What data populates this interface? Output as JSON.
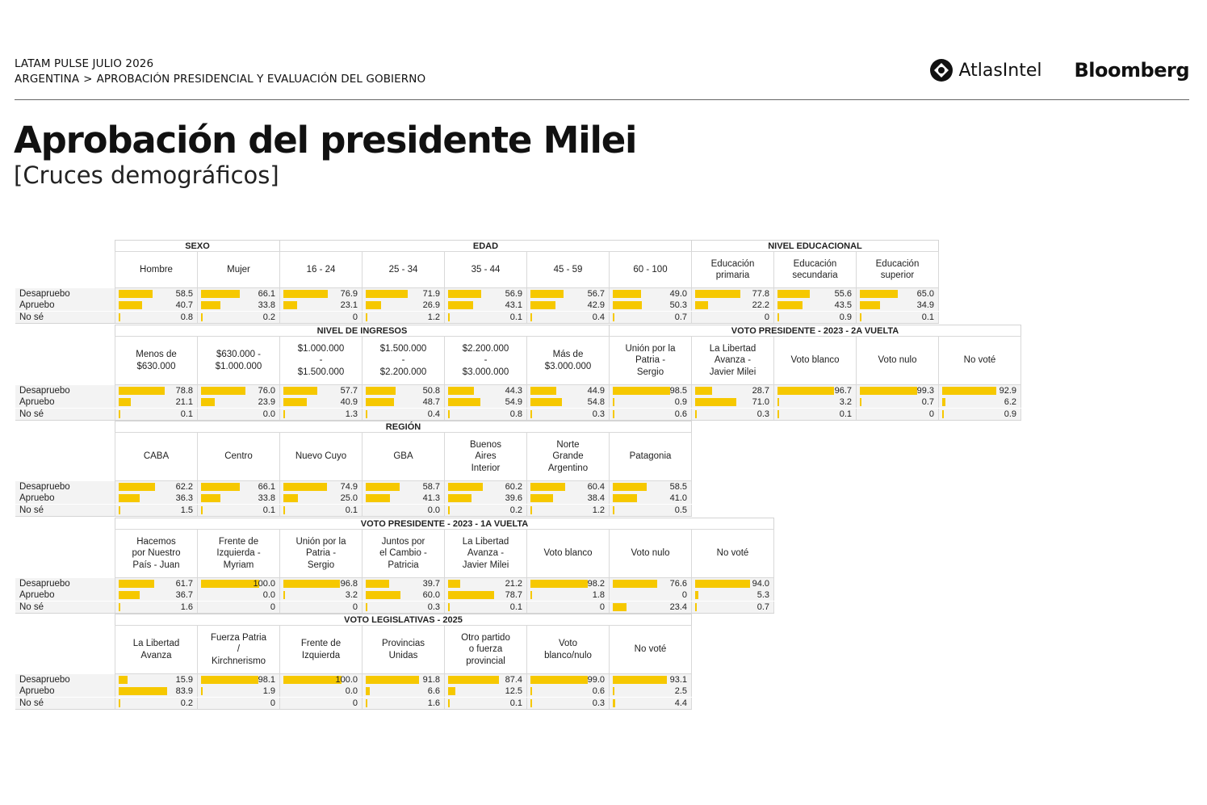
{
  "header": {
    "line1": "LATAM PULSE JULIO 2026",
    "crumb1": "ARGENTINA",
    "crumb_sep": ">",
    "crumb2": "APROBACIÓN PRESIDENCIAL Y EVALUACIÓN DEL GOBIERNO",
    "logo_atlas": "AtlasIntel",
    "logo_bloomberg": "Bloomberg"
  },
  "title": "Aprobación del presidente Milei",
  "subtitle": "[Cruces demográficos]",
  "colors": {
    "bar": "#f6c800",
    "cell_bg": "#f3f3f3",
    "border": "#d9d9d9"
  },
  "chart_data": [
    {
      "type": "table",
      "row_labels": [
        "Desapruebo",
        "Apruebo",
        "No sé"
      ],
      "groups": [
        {
          "name": "SEXO",
          "columns": [
            {
              "label": [
                "Hombre"
              ],
              "values": [
                58.5,
                40.7,
                0.8
              ],
              "text": [
                "58.5",
                "40.7",
                "0.8"
              ]
            },
            {
              "label": [
                "Mujer"
              ],
              "values": [
                66.1,
                33.8,
                0.2
              ],
              "text": [
                "66.1",
                "33.8",
                "0.2"
              ]
            }
          ]
        },
        {
          "name": "EDAD",
          "columns": [
            {
              "label": [
                "16 - 24"
              ],
              "values": [
                76.9,
                23.1,
                0
              ],
              "text": [
                "76.9",
                "23.1",
                "0"
              ]
            },
            {
              "label": [
                "25 - 34"
              ],
              "values": [
                71.9,
                26.9,
                1.2
              ],
              "text": [
                "71.9",
                "26.9",
                "1.2"
              ]
            },
            {
              "label": [
                "35 - 44"
              ],
              "values": [
                56.9,
                43.1,
                0.1
              ],
              "text": [
                "56.9",
                "43.1",
                "0.1"
              ]
            },
            {
              "label": [
                "45 - 59"
              ],
              "values": [
                56.7,
                42.9,
                0.4
              ],
              "text": [
                "56.7",
                "42.9",
                "0.4"
              ]
            },
            {
              "label": [
                "60 - 100"
              ],
              "values": [
                49.0,
                50.3,
                0.7
              ],
              "text": [
                "49.0",
                "50.3",
                "0.7"
              ]
            }
          ]
        },
        {
          "name": "NIVEL EDUCACIONAL",
          "columns": [
            {
              "label": [
                "Educación",
                "primaria"
              ],
              "values": [
                77.8,
                22.2,
                0
              ],
              "text": [
                "77.8",
                "22.2",
                "0"
              ]
            },
            {
              "label": [
                "Educación",
                "secundaria"
              ],
              "values": [
                55.6,
                43.5,
                0.9
              ],
              "text": [
                "55.6",
                "43.5",
                "0.9"
              ]
            },
            {
              "label": [
                "Educación",
                "superior"
              ],
              "values": [
                65.0,
                34.9,
                0.1
              ],
              "text": [
                "65.0",
                "34.9",
                "0.1"
              ]
            }
          ]
        }
      ]
    },
    {
      "type": "table",
      "row_labels": [
        "Desapruebo",
        "Apruebo",
        "No sé"
      ],
      "groups": [
        {
          "name": "NIVEL DE INGRESOS",
          "columns": [
            {
              "label": [
                "Menos de",
                "$630.000"
              ],
              "values": [
                78.8,
                21.1,
                0.1
              ],
              "text": [
                "78.8",
                "21.1",
                "0.1"
              ]
            },
            {
              "label": [
                "$630.000 -",
                "$1.000.000"
              ],
              "values": [
                76.0,
                23.9,
                0.0
              ],
              "text": [
                "76.0",
                "23.9",
                "0.0"
              ]
            },
            {
              "label": [
                "$1.000.000",
                "-",
                "$1.500.000"
              ],
              "values": [
                57.7,
                40.9,
                1.3
              ],
              "text": [
                "57.7",
                "40.9",
                "1.3"
              ]
            },
            {
              "label": [
                "$1.500.000",
                "-",
                "$2.200.000"
              ],
              "values": [
                50.8,
                48.7,
                0.4
              ],
              "text": [
                "50.8",
                "48.7",
                "0.4"
              ]
            },
            {
              "label": [
                "$2.200.000",
                "-",
                "$3.000.000"
              ],
              "values": [
                44.3,
                54.9,
                0.8
              ],
              "text": [
                "44.3",
                "54.9",
                "0.8"
              ]
            },
            {
              "label": [
                "Más de",
                "$3.000.000"
              ],
              "values": [
                44.9,
                54.8,
                0.3
              ],
              "text": [
                "44.9",
                "54.8",
                "0.3"
              ]
            }
          ]
        },
        {
          "name": "VOTO PRESIDENTE - 2023 - 2A VUELTA",
          "columns": [
            {
              "label": [
                "Unión por la",
                "Patria -",
                "Sergio"
              ],
              "values": [
                98.5,
                0.9,
                0.6
              ],
              "text": [
                "98.5",
                "0.9",
                "0.6"
              ]
            },
            {
              "label": [
                "La Libertad",
                "Avanza -",
                "Javier Milei"
              ],
              "values": [
                28.7,
                71.0,
                0.3
              ],
              "text": [
                "28.7",
                "71.0",
                "0.3"
              ]
            },
            {
              "label": [
                "Voto blanco"
              ],
              "values": [
                96.7,
                3.2,
                0.1
              ],
              "text": [
                "96.7",
                "3.2",
                "0.1"
              ]
            },
            {
              "label": [
                "Voto nulo"
              ],
              "values": [
                99.3,
                0.7,
                0
              ],
              "text": [
                "99.3",
                "0.7",
                "0"
              ]
            },
            {
              "label": [
                "No voté"
              ],
              "values": [
                92.9,
                6.2,
                0.9
              ],
              "text": [
                "92.9",
                "6.2",
                "0.9"
              ]
            }
          ]
        }
      ]
    },
    {
      "type": "table",
      "row_labels": [
        "Desapruebo",
        "Apruebo",
        "No sé"
      ],
      "groups": [
        {
          "name": "REGIÓN",
          "columns": [
            {
              "label": [
                "CABA"
              ],
              "values": [
                62.2,
                36.3,
                1.5
              ],
              "text": [
                "62.2",
                "36.3",
                "1.5"
              ]
            },
            {
              "label": [
                "Centro"
              ],
              "values": [
                66.1,
                33.8,
                0.1
              ],
              "text": [
                "66.1",
                "33.8",
                "0.1"
              ]
            },
            {
              "label": [
                "Nuevo Cuyo"
              ],
              "values": [
                74.9,
                25.0,
                0.1
              ],
              "text": [
                "74.9",
                "25.0",
                "0.1"
              ]
            },
            {
              "label": [
                "GBA"
              ],
              "values": [
                58.7,
                41.3,
                0.0
              ],
              "text": [
                "58.7",
                "41.3",
                "0.0"
              ]
            },
            {
              "label": [
                "Buenos",
                "Aires",
                "Interior"
              ],
              "values": [
                60.2,
                39.6,
                0.2
              ],
              "text": [
                "60.2",
                "39.6",
                "0.2"
              ]
            },
            {
              "label": [
                "Norte",
                "Grande",
                "Argentino"
              ],
              "values": [
                60.4,
                38.4,
                1.2
              ],
              "text": [
                "60.4",
                "38.4",
                "1.2"
              ]
            },
            {
              "label": [
                "Patagonia"
              ],
              "values": [
                58.5,
                41.0,
                0.5
              ],
              "text": [
                "58.5",
                "41.0",
                "0.5"
              ]
            }
          ]
        }
      ]
    },
    {
      "type": "table",
      "row_labels": [
        "Desapruebo",
        "Apruebo",
        "No sé"
      ],
      "groups": [
        {
          "name": "VOTO PRESIDENTE - 2023 - 1A VUELTA",
          "columns": [
            {
              "label": [
                "Hacemos",
                "por Nuestro",
                "País - Juan"
              ],
              "values": [
                61.7,
                36.7,
                1.6
              ],
              "text": [
                "61.7",
                "36.7",
                "1.6"
              ]
            },
            {
              "label": [
                "Frente de",
                "Izquierda -",
                "Myriam"
              ],
              "values": [
                100.0,
                0.0,
                0
              ],
              "text": [
                "100.0",
                "0.0",
                "0"
              ]
            },
            {
              "label": [
                "Unión por la",
                "Patria -",
                "Sergio"
              ],
              "values": [
                96.8,
                3.2,
                0
              ],
              "text": [
                "96.8",
                "3.2",
                "0"
              ]
            },
            {
              "label": [
                "Juntos por",
                "el Cambio -",
                "Patricia"
              ],
              "values": [
                39.7,
                60.0,
                0.3
              ],
              "text": [
                "39.7",
                "60.0",
                "0.3"
              ]
            },
            {
              "label": [
                "La Libertad",
                "Avanza -",
                "Javier Milei"
              ],
              "values": [
                21.2,
                78.7,
                0.1
              ],
              "text": [
                "21.2",
                "78.7",
                "0.1"
              ]
            },
            {
              "label": [
                "Voto blanco"
              ],
              "values": [
                98.2,
                1.8,
                0
              ],
              "text": [
                "98.2",
                "1.8",
                "0"
              ]
            },
            {
              "label": [
                "Voto nulo"
              ],
              "values": [
                76.6,
                0,
                23.4
              ],
              "text": [
                "76.6",
                "0",
                "23.4"
              ]
            },
            {
              "label": [
                "No voté"
              ],
              "values": [
                94.0,
                5.3,
                0.7
              ],
              "text": [
                "94.0",
                "5.3",
                "0.7"
              ]
            }
          ]
        }
      ]
    },
    {
      "type": "table",
      "row_labels": [
        "Desapruebo",
        "Apruebo",
        "No sé"
      ],
      "groups": [
        {
          "name": "VOTO LEGISLATIVAS - 2025",
          "columns": [
            {
              "label": [
                "La Libertad",
                "Avanza"
              ],
              "values": [
                15.9,
                83.9,
                0.2
              ],
              "text": [
                "15.9",
                "83.9",
                "0.2"
              ]
            },
            {
              "label": [
                "Fuerza Patria",
                "/",
                "Kirchnerismo"
              ],
              "values": [
                98.1,
                1.9,
                0
              ],
              "text": [
                "98.1",
                "1.9",
                "0"
              ]
            },
            {
              "label": [
                "Frente de",
                "Izquierda"
              ],
              "values": [
                100.0,
                0.0,
                0
              ],
              "text": [
                "100.0",
                "0.0",
                "0"
              ]
            },
            {
              "label": [
                "Provincias",
                "Unidas"
              ],
              "values": [
                91.8,
                6.6,
                1.6
              ],
              "text": [
                "91.8",
                "6.6",
                "1.6"
              ]
            },
            {
              "label": [
                "Otro partido",
                "o fuerza",
                "provincial"
              ],
              "values": [
                87.4,
                12.5,
                0.1
              ],
              "text": [
                "87.4",
                "12.5",
                "0.1"
              ]
            },
            {
              "label": [
                "Voto",
                "blanco/nulo"
              ],
              "values": [
                99.0,
                0.6,
                0.3
              ],
              "text": [
                "99.0",
                "0.6",
                "0.3"
              ]
            },
            {
              "label": [
                "No voté"
              ],
              "values": [
                93.1,
                2.5,
                4.4
              ],
              "text": [
                "93.1",
                "2.5",
                "4.4"
              ]
            }
          ]
        }
      ]
    }
  ]
}
